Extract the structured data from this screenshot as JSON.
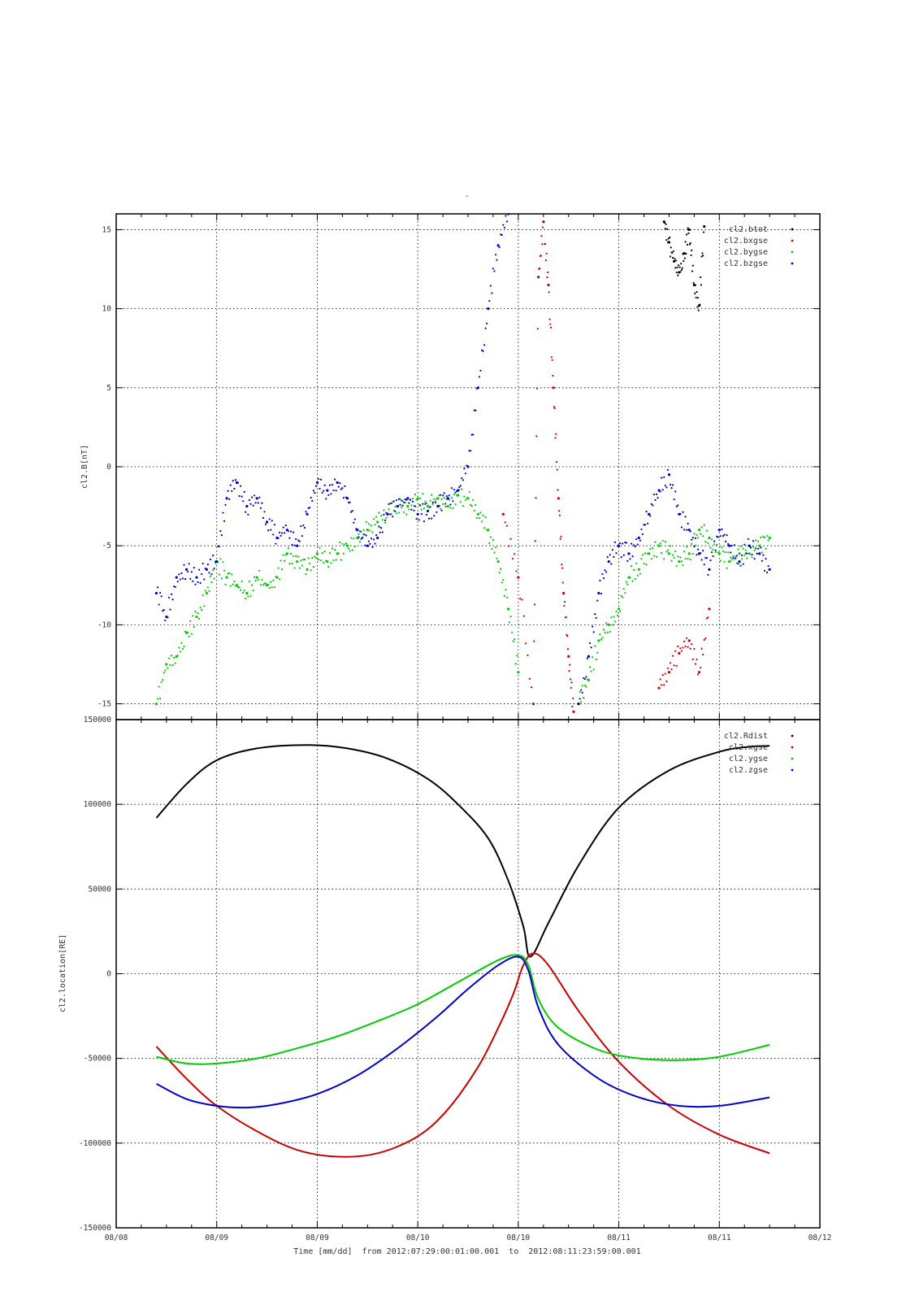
{
  "figure": {
    "top_title": "-",
    "xlabel": "Time [mm/dd]  from 2012:07:29:00:01:00.001  to  2012:08:11:23:59:00.001",
    "x_tick_labels": [
      "08/08",
      "08/09",
      "08/09",
      "08/10",
      "08/10",
      "08/11",
      "08/11",
      "08/12"
    ]
  },
  "chart_data": [
    {
      "type": "scatter",
      "ylabel": "cl2.B[nT]",
      "ylim": [
        -16,
        16
      ],
      "y_ticks": [
        -15,
        -10,
        -5,
        0,
        5,
        10,
        15
      ],
      "y_tick_labels": [
        "-15",
        "-10",
        "-5",
        "0",
        "5",
        "10",
        "15"
      ],
      "xlim": [
        0,
        7
      ],
      "grid": true,
      "legend_position": "top-right",
      "series": [
        {
          "name": "cl2.btot",
          "color": "#000000",
          "x": [
            5.45,
            5.5,
            5.55,
            5.6,
            5.65,
            5.7,
            5.75,
            5.8,
            5.85
          ],
          "y": [
            15.5,
            14.2,
            13.0,
            12.3,
            13.5,
            15.0,
            11.5,
            10.2,
            15.2
          ]
        },
        {
          "name": "cl2.bxgse",
          "color": "#cc0000",
          "x": [
            3.85,
            4.0,
            4.15,
            4.2,
            4.25,
            4.3,
            4.35,
            4.4,
            4.45,
            4.5,
            4.55,
            5.4,
            5.5,
            5.6,
            5.7,
            5.8,
            5.9
          ],
          "y": [
            -3.0,
            -7.0,
            -15.0,
            12.0,
            15.5,
            11.5,
            5.0,
            -2.0,
            -8.0,
            -12.0,
            -15.5,
            -14.0,
            -13.0,
            -11.8,
            -11.0,
            -13.0,
            -9.0
          ]
        },
        {
          "name": "cl2.bygse",
          "color": "#00cc00",
          "x": [
            0.4,
            0.5,
            0.6,
            0.7,
            0.8,
            0.9,
            1.0,
            1.1,
            1.2,
            1.3,
            1.4,
            1.5,
            1.6,
            1.7,
            1.8,
            1.9,
            2.0,
            2.1,
            2.2,
            2.3,
            2.4,
            2.5,
            2.6,
            2.7,
            2.8,
            2.9,
            3.0,
            3.1,
            3.2,
            3.3,
            3.4,
            3.5,
            3.6,
            3.7,
            3.8,
            3.9,
            4.0,
            4.6,
            4.7,
            4.8,
            4.9,
            5.0,
            5.1,
            5.2,
            5.3,
            5.4,
            5.5,
            5.6,
            5.7,
            5.8,
            5.9,
            6.0,
            6.1,
            6.2,
            6.3,
            6.4,
            6.5
          ],
          "y": [
            -15.0,
            -12.5,
            -12.0,
            -10.5,
            -9.5,
            -8.0,
            -6.0,
            -7.0,
            -7.5,
            -8.0,
            -7.0,
            -7.5,
            -7.0,
            -5.5,
            -6.0,
            -6.5,
            -5.5,
            -6.0,
            -5.5,
            -5.0,
            -4.5,
            -4.0,
            -3.5,
            -3.0,
            -2.5,
            -2.5,
            -2.0,
            -2.5,
            -2.0,
            -2.5,
            -1.8,
            -2.0,
            -3.0,
            -4.0,
            -6.0,
            -9.0,
            -13.0,
            -15.0,
            -13.5,
            -11.0,
            -10.0,
            -9.0,
            -7.0,
            -6.5,
            -5.5,
            -5.0,
            -5.5,
            -6.0,
            -5.5,
            -4.0,
            -4.5,
            -5.5,
            -6.0,
            -5.5,
            -5.5,
            -5.0,
            -4.5
          ]
        },
        {
          "name": "cl2.bzgse",
          "color": "#0000cc",
          "x": [
            0.4,
            0.5,
            0.6,
            0.7,
            0.8,
            0.9,
            1.0,
            1.1,
            1.2,
            1.3,
            1.4,
            1.5,
            1.6,
            1.7,
            1.8,
            1.9,
            2.0,
            2.1,
            2.2,
            2.3,
            2.4,
            2.5,
            2.6,
            2.7,
            2.8,
            2.9,
            3.0,
            3.1,
            3.2,
            3.3,
            3.4,
            3.5,
            3.6,
            3.7,
            3.8,
            3.9,
            4.6,
            4.7,
            4.8,
            4.9,
            5.0,
            5.1,
            5.2,
            5.3,
            5.4,
            5.5,
            5.6,
            5.7,
            5.8,
            5.9,
            6.0,
            6.1,
            6.2,
            6.3,
            6.4,
            6.5
          ],
          "y": [
            -8.0,
            -9.5,
            -7.0,
            -6.5,
            -7.0,
            -6.5,
            -6.0,
            -2.0,
            -1.0,
            -2.5,
            -2.0,
            -3.5,
            -4.5,
            -4.0,
            -5.0,
            -3.0,
            -1.0,
            -1.5,
            -1.0,
            -2.0,
            -4.0,
            -5.0,
            -4.5,
            -3.0,
            -2.5,
            -2.0,
            -3.0,
            -2.8,
            -2.5,
            -2.0,
            -1.5,
            0.0,
            5.0,
            10.0,
            14.0,
            16.0,
            -15.0,
            -12.0,
            -8.0,
            -6.0,
            -5.0,
            -5.5,
            -4.5,
            -3.0,
            -1.5,
            -0.5,
            -3.0,
            -4.0,
            -5.5,
            -6.5,
            -4.0,
            -5.0,
            -6.0,
            -5.0,
            -5.5,
            -6.5
          ]
        }
      ]
    },
    {
      "type": "line",
      "ylabel": "cl2.location[RE]",
      "ylim": [
        -150000,
        150000
      ],
      "y_ticks": [
        -150000,
        -100000,
        -50000,
        0,
        50000,
        100000,
        150000
      ],
      "y_tick_labels": [
        "-150000",
        "-100000",
        "-50000",
        "0",
        "50000",
        "100000",
        "150000"
      ],
      "xlim": [
        0,
        7
      ],
      "grid": true,
      "legend_position": "top-right",
      "series": [
        {
          "name": "cl2.Rdist",
          "color": "#000000",
          "x": [
            0.4,
            0.7,
            1.0,
            1.4,
            1.9,
            2.3,
            2.7,
            3.1,
            3.4,
            3.7,
            3.9,
            4.05,
            4.12,
            4.3,
            4.6,
            5.0,
            5.5,
            6.0,
            6.3,
            6.5
          ],
          "y": [
            92000,
            112000,
            126000,
            133000,
            135000,
            133000,
            127000,
            115000,
            100000,
            80000,
            55000,
            28000,
            10000,
            30000,
            64000,
            98000,
            120000,
            131000,
            134000,
            134500
          ]
        },
        {
          "name": "cl2.xgse",
          "color": "#cc0000",
          "x": [
            0.4,
            0.7,
            1.0,
            1.4,
            1.8,
            2.2,
            2.6,
            3.0,
            3.3,
            3.6,
            3.8,
            3.95,
            4.05,
            4.15,
            4.3,
            4.6,
            5.0,
            5.5,
            6.0,
            6.5
          ],
          "y": [
            -43000,
            -62000,
            -78000,
            -93000,
            -104000,
            -108000,
            -106000,
            -96000,
            -80000,
            -55000,
            -32000,
            -12000,
            5000,
            12000,
            5000,
            -22000,
            -52000,
            -78000,
            -95000,
            -106000
          ]
        },
        {
          "name": "cl2.ygse",
          "color": "#00cc00",
          "x": [
            0.4,
            0.7,
            1.0,
            1.4,
            1.8,
            2.2,
            2.6,
            3.0,
            3.4,
            3.8,
            4.0,
            4.1,
            4.2,
            4.4,
            4.8,
            5.2,
            5.6,
            6.0,
            6.5
          ],
          "y": [
            -49000,
            -53000,
            -53000,
            -50000,
            -44000,
            -37000,
            -28000,
            -18000,
            -5000,
            8000,
            11000,
            5000,
            -15000,
            -32000,
            -45000,
            -50000,
            -51000,
            -49000,
            -42000
          ]
        },
        {
          "name": "cl2.zgse",
          "color": "#0000cc",
          "x": [
            0.4,
            0.7,
            1.0,
            1.3,
            1.6,
            2.0,
            2.4,
            2.8,
            3.2,
            3.5,
            3.8,
            4.0,
            4.1,
            4.2,
            4.4,
            4.8,
            5.2,
            5.6,
            6.0,
            6.5
          ],
          "y": [
            -65000,
            -74000,
            -78000,
            -79000,
            -77000,
            -71000,
            -60000,
            -44000,
            -25000,
            -9000,
            5000,
            10000,
            2000,
            -20000,
            -42000,
            -62000,
            -73000,
            -78000,
            -78000,
            -73000
          ]
        }
      ]
    }
  ]
}
